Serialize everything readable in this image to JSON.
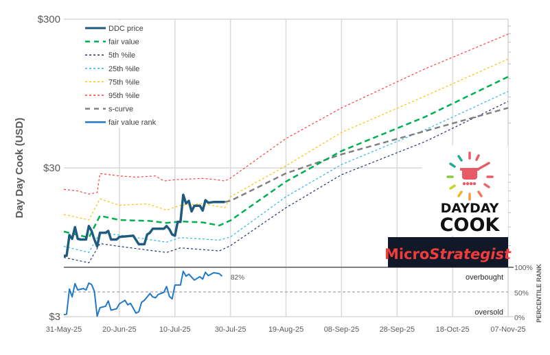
{
  "chart_data": {
    "type": "line",
    "ylabel": "Day Day Cook (USD)",
    "y_scale": "log",
    "ylim": [
      3,
      300
    ],
    "y_ticks": [
      "$300",
      "$30",
      "$3"
    ],
    "x_ticks": [
      "31-May-25",
      "20-Jun-25",
      "10-Jul-25",
      "30-Jul-25",
      "19-Aug-25",
      "08-Sep-25",
      "28-Sep-25",
      "18-Oct-25",
      "07-Nov-25"
    ],
    "xlim": [
      "2025-05-31",
      "2025-11-07"
    ],
    "grid": true,
    "legend_position": "top-left",
    "rank_panel": {
      "y_ticks": [
        "100%",
        "50%",
        "0%"
      ],
      "ylabel": "PERCENTILE RANK",
      "overbought_label": "overbought",
      "oversold_label": "oversold",
      "last_value_label": "82%"
    },
    "series": [
      {
        "name": "DDC price",
        "color": "#1f5b7e",
        "style": "solid-thick",
        "points": [
          [
            "2025-05-31",
            7.7
          ],
          [
            "2025-06-01",
            7.7
          ],
          [
            "2025-06-02",
            10.6
          ],
          [
            "2025-06-03",
            10.0
          ],
          [
            "2025-06-04",
            12.0
          ],
          [
            "2025-06-05",
            10.0
          ],
          [
            "2025-06-06",
            9.9
          ],
          [
            "2025-06-08",
            9.9
          ],
          [
            "2025-06-09",
            12.2
          ],
          [
            "2025-06-10",
            11.3
          ],
          [
            "2025-06-11",
            9.9
          ],
          [
            "2025-06-12",
            8.9
          ],
          [
            "2025-06-13",
            11.0
          ],
          [
            "2025-06-15",
            11.0
          ],
          [
            "2025-06-16",
            11.3
          ],
          [
            "2025-06-17",
            9.9
          ],
          [
            "2025-06-19",
            9.9
          ],
          [
            "2025-06-20",
            10.3
          ],
          [
            "2025-06-25",
            10.5
          ],
          [
            "2025-06-27",
            9.2
          ],
          [
            "2025-06-29",
            9.2
          ],
          [
            "2025-06-30",
            10.7
          ],
          [
            "2025-07-01",
            11.0
          ],
          [
            "2025-07-02",
            11.7
          ],
          [
            "2025-07-06",
            11.7
          ],
          [
            "2025-07-07",
            12.2
          ],
          [
            "2025-07-08",
            11.6
          ],
          [
            "2025-07-09",
            10.7
          ],
          [
            "2025-07-10",
            10.5
          ],
          [
            "2025-07-11",
            13.0
          ],
          [
            "2025-07-12",
            13.0
          ],
          [
            "2025-07-13",
            19.8
          ],
          [
            "2025-07-14",
            17.3
          ],
          [
            "2025-07-15",
            18.0
          ],
          [
            "2025-07-16",
            15.3
          ],
          [
            "2025-07-17",
            16.7
          ],
          [
            "2025-07-19",
            16.7
          ],
          [
            "2025-07-20",
            15.5
          ],
          [
            "2025-07-21",
            18.2
          ],
          [
            "2025-07-22",
            17.5
          ],
          [
            "2025-07-24",
            17.7
          ],
          [
            "2025-07-28",
            17.7
          ]
        ]
      },
      {
        "name": "fair value",
        "color": "#00b050",
        "style": "dash-long",
        "points": [
          [
            "2025-05-31",
            11.2
          ],
          [
            "2025-06-09",
            10.2
          ],
          [
            "2025-06-13",
            14.3
          ],
          [
            "2025-06-20",
            13.4
          ],
          [
            "2025-07-01",
            13.2
          ],
          [
            "2025-07-07",
            12.8
          ],
          [
            "2025-07-12",
            13.1
          ],
          [
            "2025-07-20",
            12.9
          ],
          [
            "2025-07-26",
            12.3
          ],
          [
            "2025-07-30",
            13.3
          ],
          [
            "2025-08-19",
            24.3
          ],
          [
            "2025-09-08",
            39
          ],
          [
            "2025-10-08",
            66
          ],
          [
            "2025-11-07",
            123
          ]
        ]
      },
      {
        "name": "5th %ile",
        "color": "#1f2f6e",
        "style": "dash-short",
        "points": [
          [
            "2025-05-31",
            7.5
          ],
          [
            "2025-06-09",
            6.9
          ],
          [
            "2025-06-13",
            9.3
          ],
          [
            "2025-06-20",
            8.9
          ],
          [
            "2025-07-07",
            8.1
          ],
          [
            "2025-07-12",
            8.7
          ],
          [
            "2025-07-26",
            8.3
          ],
          [
            "2025-07-30",
            9.0
          ],
          [
            "2025-08-19",
            16.2
          ],
          [
            "2025-09-08",
            27
          ],
          [
            "2025-10-08",
            45
          ],
          [
            "2025-11-07",
            84
          ]
        ]
      },
      {
        "name": "25th %ile",
        "color": "#29b5e8",
        "style": "dash-short",
        "points": [
          [
            "2025-05-31",
            8.9
          ],
          [
            "2025-06-09",
            8.1
          ],
          [
            "2025-06-13",
            11.0
          ],
          [
            "2025-06-20",
            10.6
          ],
          [
            "2025-07-07",
            9.5
          ],
          [
            "2025-07-12",
            10.2
          ],
          [
            "2025-07-26",
            9.8
          ],
          [
            "2025-07-30",
            10.3
          ],
          [
            "2025-08-19",
            19.2
          ],
          [
            "2025-09-08",
            31.6
          ],
          [
            "2025-10-08",
            54
          ],
          [
            "2025-11-07",
            98
          ]
        ]
      },
      {
        "name": "75th %ile",
        "color": "#ffc000",
        "style": "dash-short",
        "points": [
          [
            "2025-05-31",
            14.6
          ],
          [
            "2025-06-09",
            13.4
          ],
          [
            "2025-06-13",
            18.6
          ],
          [
            "2025-06-20",
            16.8
          ],
          [
            "2025-06-30",
            17.2
          ],
          [
            "2025-07-07",
            15.6
          ],
          [
            "2025-07-12",
            16.8
          ],
          [
            "2025-07-20",
            17.2
          ],
          [
            "2025-07-28",
            16.2
          ],
          [
            "2025-07-30",
            19.2
          ],
          [
            "2025-08-19",
            31
          ],
          [
            "2025-09-08",
            52
          ],
          [
            "2025-10-08",
            91
          ],
          [
            "2025-11-07",
            162
          ]
        ]
      },
      {
        "name": "95th %ile",
        "color": "#ff3b3b",
        "style": "dash-short",
        "points": [
          [
            "2025-05-31",
            21.5
          ],
          [
            "2025-06-05",
            21.0
          ],
          [
            "2025-06-09",
            20.0
          ],
          [
            "2025-06-12",
            20.5
          ],
          [
            "2025-06-13",
            27.5
          ],
          [
            "2025-06-20",
            26.5
          ],
          [
            "2025-06-26",
            26.0
          ],
          [
            "2025-07-03",
            26.5
          ],
          [
            "2025-07-06",
            24.5
          ],
          [
            "2025-07-10",
            25.0
          ],
          [
            "2025-07-20",
            25.5
          ],
          [
            "2025-07-25",
            25.0
          ],
          [
            "2025-07-28",
            24.5
          ],
          [
            "2025-07-30",
            25.6
          ],
          [
            "2025-08-19",
            47.3
          ],
          [
            "2025-09-08",
            76
          ],
          [
            "2025-10-08",
            139
          ],
          [
            "2025-11-07",
            238
          ]
        ]
      },
      {
        "name": "s-curve",
        "color": "#808080",
        "style": "dash-long",
        "points": [
          [
            "2025-07-28",
            17.7
          ],
          [
            "2025-07-30",
            18.0
          ],
          [
            "2025-08-19",
            27.6
          ],
          [
            "2025-09-08",
            37
          ],
          [
            "2025-10-08",
            53
          ],
          [
            "2025-11-07",
            76
          ]
        ]
      },
      {
        "name": "fair value rank",
        "color": "#1f78c8",
        "style": "solid",
        "panel": "rank",
        "points": [
          [
            "2025-05-31",
            4
          ],
          [
            "2025-06-01",
            5
          ],
          [
            "2025-06-02",
            56
          ],
          [
            "2025-06-03",
            40
          ],
          [
            "2025-06-04",
            67
          ],
          [
            "2025-06-05",
            54
          ],
          [
            "2025-06-07",
            57
          ],
          [
            "2025-06-08",
            54
          ],
          [
            "2025-06-09",
            68
          ],
          [
            "2025-06-10",
            65
          ],
          [
            "2025-06-11",
            51
          ],
          [
            "2025-06-12",
            1
          ],
          [
            "2025-06-13",
            18
          ],
          [
            "2025-06-15",
            21
          ],
          [
            "2025-06-16",
            32
          ],
          [
            "2025-06-17",
            13
          ],
          [
            "2025-06-19",
            16
          ],
          [
            "2025-06-20",
            26
          ],
          [
            "2025-06-22",
            33
          ],
          [
            "2025-06-23",
            24
          ],
          [
            "2025-06-24",
            27
          ],
          [
            "2025-06-26",
            7
          ],
          [
            "2025-06-27",
            10
          ],
          [
            "2025-06-28",
            29
          ],
          [
            "2025-06-29",
            33
          ],
          [
            "2025-07-01",
            47
          ],
          [
            "2025-07-02",
            40
          ],
          [
            "2025-07-03",
            38
          ],
          [
            "2025-07-04",
            45
          ],
          [
            "2025-07-06",
            49
          ],
          [
            "2025-07-07",
            61
          ],
          [
            "2025-07-08",
            41
          ],
          [
            "2025-07-09",
            36
          ],
          [
            "2025-07-10",
            64
          ],
          [
            "2025-07-12",
            64
          ],
          [
            "2025-07-13",
            92
          ],
          [
            "2025-07-14",
            82
          ],
          [
            "2025-07-15",
            86
          ],
          [
            "2025-07-17",
            74
          ],
          [
            "2025-07-19",
            81
          ],
          [
            "2025-07-20",
            76
          ],
          [
            "2025-07-21",
            90
          ],
          [
            "2025-07-22",
            83
          ],
          [
            "2025-07-24",
            89
          ],
          [
            "2025-07-26",
            87
          ],
          [
            "2025-07-27",
            82
          ]
        ]
      }
    ]
  },
  "logos": {
    "daydaycook_line1": "DAYDAY",
    "daydaycook_line2": "COOK",
    "microstrategist_a": "Micro",
    "microstrategist_b": "Strategist"
  }
}
